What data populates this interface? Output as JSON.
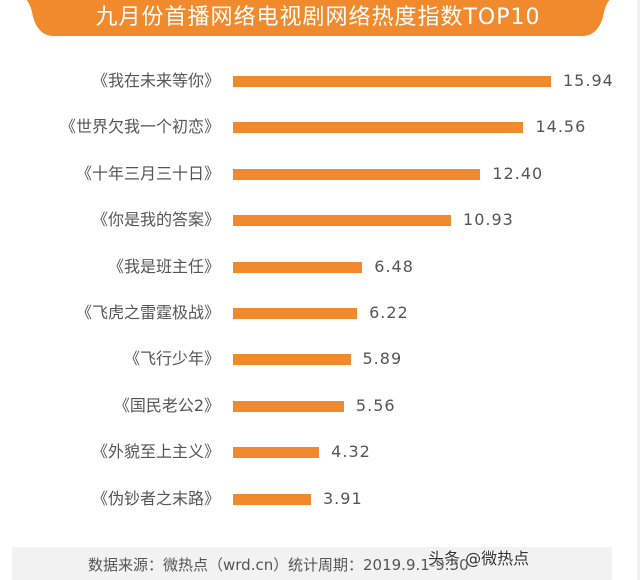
{
  "title": "九月份首播网络电视剧网络热度指数TOP10",
  "colors": {
    "accent": "#f08a2c",
    "text": "#555555",
    "footer_bg": "#f2f2f2"
  },
  "footer": {
    "source": "数据来源：微热点（wrd.cn）",
    "period": "统计周期：2019.9.1-9.30",
    "watermark": "头条 @微热点"
  },
  "chart_data": {
    "type": "bar",
    "orientation": "horizontal",
    "title": "九月份首播网络电视剧网络热度指数TOP10",
    "xlabel": "",
    "ylabel": "",
    "grid": false,
    "legend": null,
    "categories": [
      "《我在未来等你》",
      "《世界欠我一个初恋》",
      "《十年三月三十日》",
      "《你是我的答案》",
      "《我是班主任》",
      "《飞虎之雷霆极战》",
      "《飞行少年》",
      "《国民老公2》",
      "《外貌至上主义》",
      "《伪钞者之末路》"
    ],
    "values": [
      15.94,
      14.56,
      12.4,
      10.93,
      6.48,
      6.22,
      5.89,
      5.56,
      4.32,
      3.91
    ],
    "value_labels": [
      "15.94",
      "14.56",
      "12.40",
      "10.93",
      "6.48",
      "6.22",
      "5.89",
      "5.56",
      "4.32",
      "3.91"
    ]
  }
}
